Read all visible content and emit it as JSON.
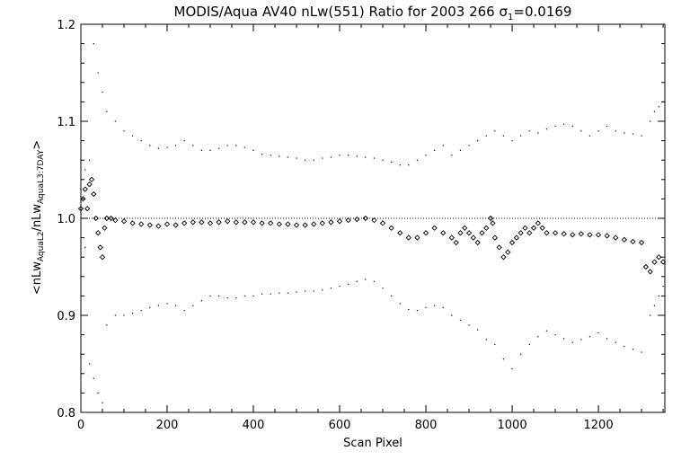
{
  "chart_data": {
    "type": "scatter",
    "title": "MODIS/Aqua AV40 nLw(551) Ratio for 2003 266 σ",
    "title_sigma_subscript": "1",
    "title_sigma_value": "=0.0169",
    "xlabel": "Scan Pixel",
    "ylabel": {
      "open": "<nLw",
      "sub1": "AquaL2",
      "mid": "/nLw",
      "sub2": "AquaL3:7DAY",
      "close": ">"
    },
    "xlim": [
      0,
      1354
    ],
    "ylim": [
      0.8,
      1.2
    ],
    "x_ticks": [
      {
        "value": 0,
        "label": "0"
      },
      {
        "value": 200,
        "label": "200"
      },
      {
        "value": 400,
        "label": "400"
      },
      {
        "value": 600,
        "label": "600"
      },
      {
        "value": 800,
        "label": "800"
      },
      {
        "value": 1000,
        "label": "1000"
      },
      {
        "value": 1200,
        "label": "1200"
      }
    ],
    "y_ticks": [
      {
        "value": 0.8,
        "label": "0.8"
      },
      {
        "value": 0.9,
        "label": "0.9"
      },
      {
        "value": 1.0,
        "label": "1.0"
      },
      {
        "value": 1.1,
        "label": "1.1"
      },
      {
        "value": 1.2,
        "label": "1.2"
      }
    ],
    "reference_line": 1.0,
    "grid": false,
    "series": [
      {
        "role": "mean ratio",
        "marker": "diamond",
        "points": [
          [
            0,
            1.01
          ],
          [
            5,
            1.02
          ],
          [
            10,
            1.03
          ],
          [
            15,
            1.01
          ],
          [
            20,
            1.035
          ],
          [
            25,
            1.04
          ],
          [
            30,
            1.025
          ],
          [
            35,
            1.0
          ],
          [
            40,
            0.985
          ],
          [
            45,
            0.97
          ],
          [
            50,
            0.96
          ],
          [
            55,
            0.99
          ],
          [
            60,
            1.0
          ],
          [
            70,
            1.0
          ],
          [
            80,
            0.998
          ],
          [
            100,
            0.997
          ],
          [
            120,
            0.995
          ],
          [
            140,
            0.994
          ],
          [
            160,
            0.993
          ],
          [
            180,
            0.992
          ],
          [
            200,
            0.994
          ],
          [
            220,
            0.993
          ],
          [
            240,
            0.995
          ],
          [
            260,
            0.996
          ],
          [
            280,
            0.996
          ],
          [
            300,
            0.995
          ],
          [
            320,
            0.996
          ],
          [
            340,
            0.997
          ],
          [
            360,
            0.996
          ],
          [
            380,
            0.996
          ],
          [
            400,
            0.996
          ],
          [
            420,
            0.995
          ],
          [
            440,
            0.995
          ],
          [
            460,
            0.994
          ],
          [
            480,
            0.994
          ],
          [
            500,
            0.993
          ],
          [
            520,
            0.993
          ],
          [
            540,
            0.994
          ],
          [
            560,
            0.995
          ],
          [
            580,
            0.996
          ],
          [
            600,
            0.997
          ],
          [
            620,
            0.998
          ],
          [
            640,
            0.999
          ],
          [
            660,
            1.0
          ],
          [
            680,
            0.998
          ],
          [
            700,
            0.995
          ],
          [
            720,
            0.99
          ],
          [
            740,
            0.985
          ],
          [
            760,
            0.98
          ],
          [
            780,
            0.98
          ],
          [
            800,
            0.985
          ],
          [
            820,
            0.99
          ],
          [
            840,
            0.985
          ],
          [
            860,
            0.98
          ],
          [
            870,
            0.975
          ],
          [
            880,
            0.985
          ],
          [
            890,
            0.99
          ],
          [
            900,
            0.985
          ],
          [
            910,
            0.98
          ],
          [
            920,
            0.975
          ],
          [
            930,
            0.985
          ],
          [
            940,
            0.99
          ],
          [
            950,
            1.0
          ],
          [
            955,
            0.995
          ],
          [
            960,
            0.98
          ],
          [
            970,
            0.97
          ],
          [
            980,
            0.96
          ],
          [
            990,
            0.965
          ],
          [
            1000,
            0.975
          ],
          [
            1010,
            0.98
          ],
          [
            1020,
            0.985
          ],
          [
            1030,
            0.99
          ],
          [
            1040,
            0.985
          ],
          [
            1050,
            0.99
          ],
          [
            1060,
            0.995
          ],
          [
            1070,
            0.99
          ],
          [
            1080,
            0.985
          ],
          [
            1100,
            0.985
          ],
          [
            1120,
            0.984
          ],
          [
            1140,
            0.983
          ],
          [
            1160,
            0.984
          ],
          [
            1180,
            0.983
          ],
          [
            1200,
            0.983
          ],
          [
            1220,
            0.982
          ],
          [
            1240,
            0.98
          ],
          [
            1260,
            0.978
          ],
          [
            1280,
            0.976
          ],
          [
            1300,
            0.975
          ],
          [
            1310,
            0.95
          ],
          [
            1320,
            0.945
          ],
          [
            1330,
            0.955
          ],
          [
            1340,
            0.96
          ],
          [
            1350,
            0.955
          ]
        ]
      },
      {
        "role": "upper bound",
        "marker": "dot",
        "points": [
          [
            0,
            1.03
          ],
          [
            10,
            1.05
          ],
          [
            20,
            1.06
          ],
          [
            30,
            1.18
          ],
          [
            40,
            1.15
          ],
          [
            50,
            1.13
          ],
          [
            60,
            1.11
          ],
          [
            80,
            1.1
          ],
          [
            100,
            1.09
          ],
          [
            120,
            1.085
          ],
          [
            140,
            1.08
          ],
          [
            160,
            1.075
          ],
          [
            180,
            1.072
          ],
          [
            200,
            1.073
          ],
          [
            220,
            1.075
          ],
          [
            240,
            1.08
          ],
          [
            260,
            1.075
          ],
          [
            280,
            1.07
          ],
          [
            300,
            1.07
          ],
          [
            320,
            1.072
          ],
          [
            340,
            1.075
          ],
          [
            360,
            1.075
          ],
          [
            380,
            1.073
          ],
          [
            400,
            1.07
          ],
          [
            420,
            1.066
          ],
          [
            440,
            1.065
          ],
          [
            460,
            1.064
          ],
          [
            480,
            1.063
          ],
          [
            500,
            1.062
          ],
          [
            520,
            1.06
          ],
          [
            540,
            1.06
          ],
          [
            560,
            1.062
          ],
          [
            580,
            1.063
          ],
          [
            600,
            1.065
          ],
          [
            620,
            1.065
          ],
          [
            640,
            1.064
          ],
          [
            660,
            1.063
          ],
          [
            680,
            1.062
          ],
          [
            700,
            1.06
          ],
          [
            720,
            1.058
          ],
          [
            740,
            1.055
          ],
          [
            760,
            1.055
          ],
          [
            780,
            1.06
          ],
          [
            800,
            1.065
          ],
          [
            820,
            1.07
          ],
          [
            840,
            1.075
          ],
          [
            860,
            1.065
          ],
          [
            880,
            1.07
          ],
          [
            900,
            1.075
          ],
          [
            920,
            1.08
          ],
          [
            940,
            1.085
          ],
          [
            960,
            1.09
          ],
          [
            980,
            1.085
          ],
          [
            1000,
            1.08
          ],
          [
            1020,
            1.085
          ],
          [
            1040,
            1.09
          ],
          [
            1060,
            1.088
          ],
          [
            1080,
            1.092
          ],
          [
            1100,
            1.095
          ],
          [
            1120,
            1.097
          ],
          [
            1140,
            1.095
          ],
          [
            1160,
            1.09
          ],
          [
            1180,
            1.085
          ],
          [
            1200,
            1.09
          ],
          [
            1220,
            1.095
          ],
          [
            1240,
            1.09
          ],
          [
            1260,
            1.088
          ],
          [
            1280,
            1.087
          ],
          [
            1300,
            1.085
          ],
          [
            1320,
            1.1
          ],
          [
            1330,
            1.11
          ],
          [
            1340,
            1.115
          ],
          [
            1350,
            1.12
          ]
        ]
      },
      {
        "role": "lower bound",
        "marker": "dot",
        "points": [
          [
            0,
            0.98
          ],
          [
            10,
            0.97
          ],
          [
            20,
            0.85
          ],
          [
            30,
            0.835
          ],
          [
            40,
            0.82
          ],
          [
            50,
            0.81
          ],
          [
            60,
            0.89
          ],
          [
            80,
            0.9
          ],
          [
            100,
            0.9
          ],
          [
            120,
            0.902
          ],
          [
            140,
            0.905
          ],
          [
            160,
            0.908
          ],
          [
            180,
            0.91
          ],
          [
            200,
            0.912
          ],
          [
            220,
            0.91
          ],
          [
            240,
            0.905
          ],
          [
            260,
            0.91
          ],
          [
            280,
            0.915
          ],
          [
            300,
            0.92
          ],
          [
            320,
            0.92
          ],
          [
            340,
            0.918
          ],
          [
            360,
            0.918
          ],
          [
            380,
            0.92
          ],
          [
            400,
            0.92
          ],
          [
            420,
            0.922
          ],
          [
            440,
            0.922
          ],
          [
            460,
            0.923
          ],
          [
            480,
            0.923
          ],
          [
            500,
            0.924
          ],
          [
            520,
            0.925
          ],
          [
            540,
            0.925
          ],
          [
            560,
            0.926
          ],
          [
            580,
            0.928
          ],
          [
            600,
            0.93
          ],
          [
            620,
            0.932
          ],
          [
            640,
            0.935
          ],
          [
            660,
            0.937
          ],
          [
            680,
            0.935
          ],
          [
            700,
            0.928
          ],
          [
            720,
            0.92
          ],
          [
            740,
            0.912
          ],
          [
            760,
            0.906
          ],
          [
            780,
            0.905
          ],
          [
            800,
            0.908
          ],
          [
            820,
            0.91
          ],
          [
            840,
            0.908
          ],
          [
            860,
            0.9
          ],
          [
            880,
            0.895
          ],
          [
            900,
            0.89
          ],
          [
            920,
            0.885
          ],
          [
            940,
            0.875
          ],
          [
            960,
            0.87
          ],
          [
            980,
            0.855
          ],
          [
            1000,
            0.845
          ],
          [
            1020,
            0.86
          ],
          [
            1040,
            0.87
          ],
          [
            1060,
            0.878
          ],
          [
            1080,
            0.884
          ],
          [
            1100,
            0.88
          ],
          [
            1120,
            0.876
          ],
          [
            1140,
            0.872
          ],
          [
            1160,
            0.875
          ],
          [
            1180,
            0.878
          ],
          [
            1200,
            0.882
          ],
          [
            1220,
            0.876
          ],
          [
            1240,
            0.872
          ],
          [
            1260,
            0.868
          ],
          [
            1280,
            0.865
          ],
          [
            1300,
            0.862
          ],
          [
            1320,
            0.9
          ],
          [
            1330,
            0.91
          ],
          [
            1340,
            0.92
          ],
          [
            1350,
            0.93
          ]
        ]
      }
    ]
  }
}
